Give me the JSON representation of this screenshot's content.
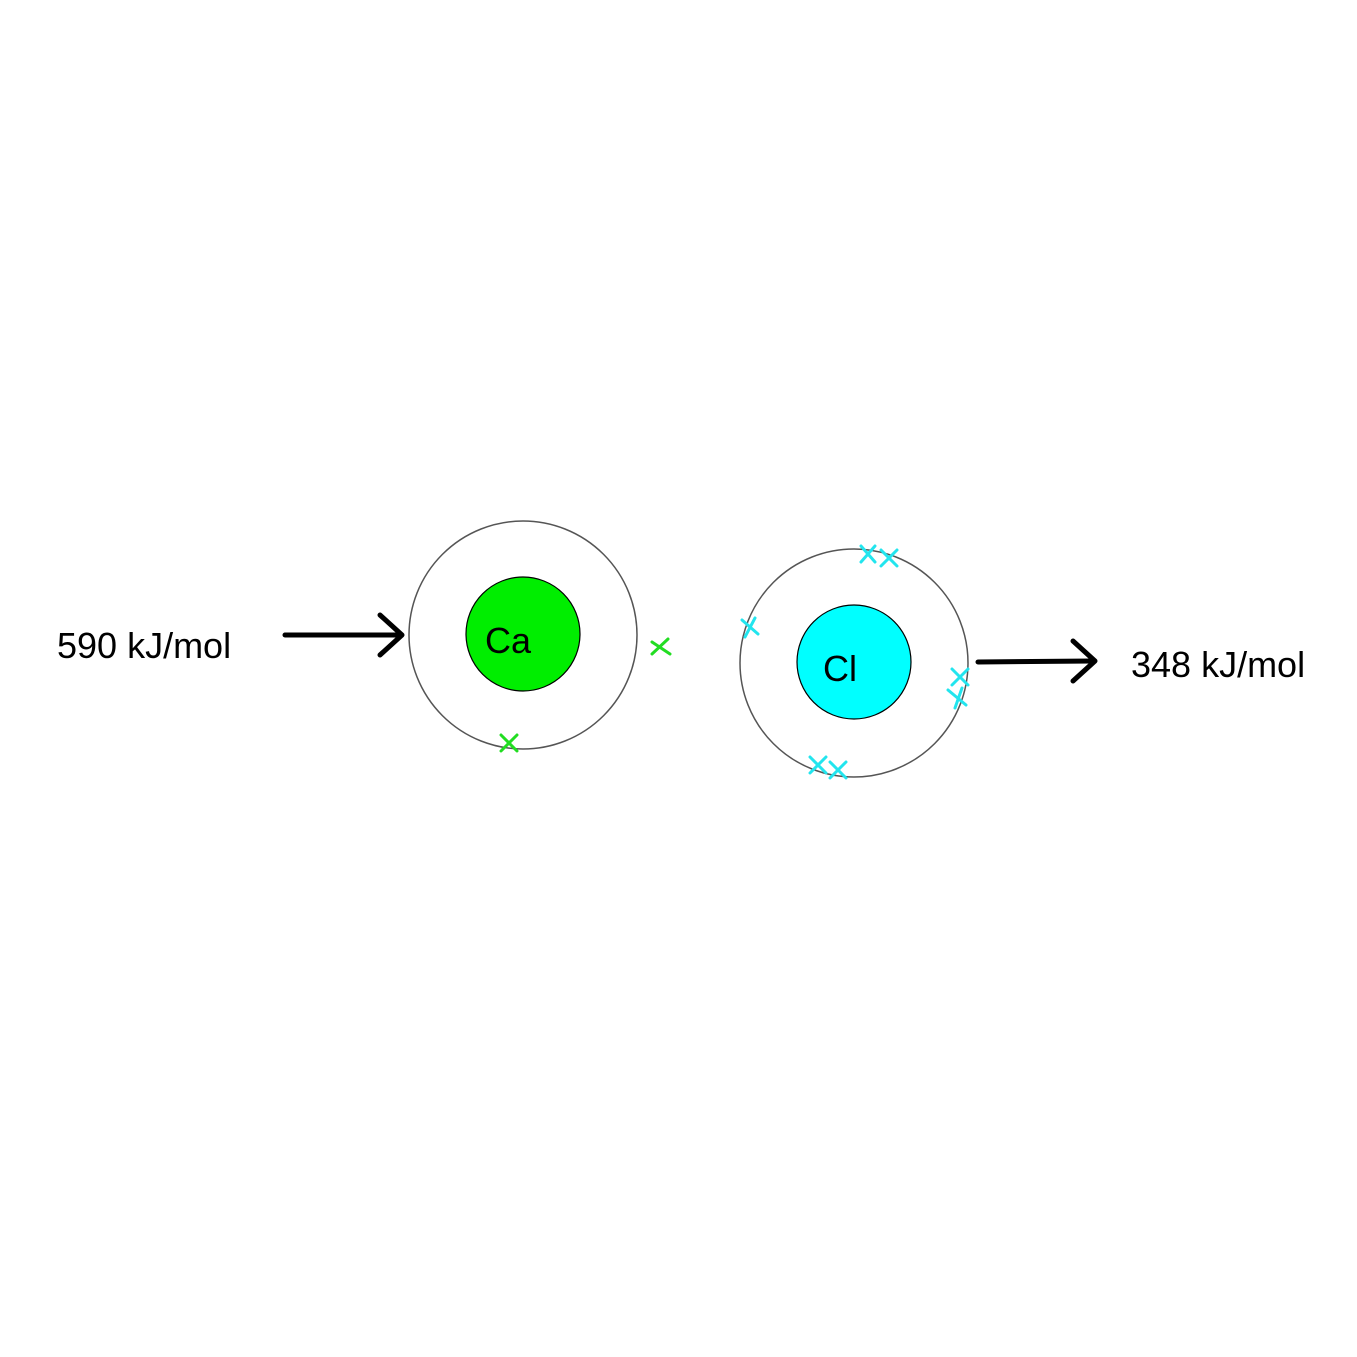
{
  "diagram": {
    "left_energy": "590 kJ/mol",
    "right_energy": "348 kJ/mol",
    "calcium": {
      "symbol": "Ca",
      "nucleus_color": "#00ee00",
      "electron_color": "#22dd22",
      "shell_electrons_shown": 1,
      "departing_electrons_shown": 1
    },
    "chlorine": {
      "symbol": "Cl",
      "nucleus_color": "#00ffff",
      "electron_color": "#22e5ee",
      "shell_electrons_shown": 7
    },
    "arrow_color": "#000000",
    "shell_color": "#555555"
  }
}
